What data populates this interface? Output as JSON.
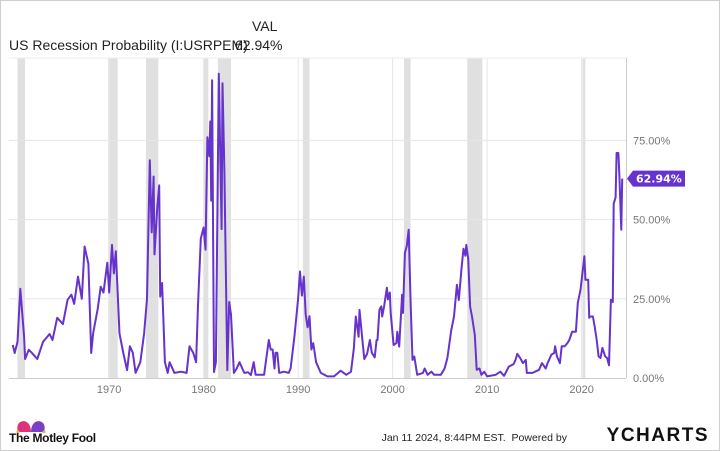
{
  "header": {
    "column_label": "VAL",
    "series_label": "US Recession Probability (I:USRPEM)",
    "series_value": "62.94%"
  },
  "footer": {
    "timestamp": "Jan 11 2024, 8:44PM EST.",
    "powered_by": "Powered by",
    "brand_logo": "The Motley Fool",
    "ycharts_logo": "YCHARTS"
  },
  "chart_data": {
    "type": "line",
    "title": "",
    "xlabel": "",
    "ylabel": "",
    "x_ticks": [
      1970,
      1980,
      1990,
      2000,
      2010,
      2020
    ],
    "x_tick_labels": [
      "1970",
      "1980",
      "1990",
      "2000",
      "2010",
      "2020"
    ],
    "y_ticks": [
      0,
      25,
      50,
      75
    ],
    "y_tick_labels": [
      "0.00%",
      "25.00%",
      "50.00%",
      "75.00%"
    ],
    "ylim": [
      0,
      101
    ],
    "xlim": [
      1959.4,
      2024.7
    ],
    "y_axis_side": "right",
    "grid": true,
    "line_color": "#6633cc",
    "recession_color": "#e0e0e0",
    "last_value_label": "62.94%",
    "last_value": 62.94,
    "recessions": [
      [
        1960.3,
        1961.1
      ],
      [
        1969.9,
        1970.9
      ],
      [
        1973.9,
        1975.2
      ],
      [
        1980.0,
        1980.5
      ],
      [
        1981.5,
        1982.9
      ],
      [
        1990.5,
        1991.2
      ],
      [
        2001.2,
        2001.9
      ],
      [
        2007.9,
        2009.5
      ],
      [
        2020.1,
        2020.4
      ]
    ],
    "series": [
      {
        "points": [
          [
            1959.8,
            10.4
          ],
          [
            1960.0,
            7.9
          ],
          [
            1960.3,
            11.4
          ],
          [
            1960.6,
            28.2
          ],
          [
            1961.0,
            13
          ],
          [
            1961.1,
            6
          ],
          [
            1961.5,
            8.9
          ],
          [
            1961.8,
            8
          ],
          [
            1962.4,
            6
          ],
          [
            1963.0,
            11.4
          ],
          [
            1963.7,
            13.9
          ],
          [
            1964.0,
            12
          ],
          [
            1964.5,
            19
          ],
          [
            1965.1,
            17
          ],
          [
            1965.6,
            24.7
          ],
          [
            1966.0,
            26.3
          ],
          [
            1966.3,
            23.4
          ],
          [
            1966.7,
            32
          ],
          [
            1967.1,
            25
          ],
          [
            1967.4,
            41.5
          ],
          [
            1967.8,
            36
          ],
          [
            1968.1,
            7.9
          ],
          [
            1968.3,
            14
          ],
          [
            1968.8,
            22
          ],
          [
            1969.1,
            28.8
          ],
          [
            1969.4,
            27
          ],
          [
            1969.8,
            36.4
          ],
          [
            1970.0,
            27
          ],
          [
            1970.3,
            42
          ],
          [
            1970.5,
            33
          ],
          [
            1970.7,
            40
          ],
          [
            1971.1,
            14
          ],
          [
            1971.5,
            7.9
          ],
          [
            1971.9,
            2.5
          ],
          [
            1972.2,
            10
          ],
          [
            1972.5,
            8
          ],
          [
            1972.8,
            1.6
          ],
          [
            1973.3,
            5
          ],
          [
            1973.7,
            14
          ],
          [
            1974.0,
            25
          ],
          [
            1974.3,
            68.7
          ],
          [
            1974.5,
            46
          ],
          [
            1974.7,
            63.6
          ],
          [
            1974.8,
            39
          ],
          [
            1975.1,
            54
          ],
          [
            1975.3,
            60.8
          ],
          [
            1975.4,
            25.7
          ],
          [
            1975.6,
            30
          ],
          [
            1975.9,
            5
          ],
          [
            1976.2,
            1.6
          ],
          [
            1976.4,
            5
          ],
          [
            1976.9,
            1.6
          ],
          [
            1977.6,
            2
          ],
          [
            1978.2,
            1.6
          ],
          [
            1978.5,
            10
          ],
          [
            1978.9,
            8
          ],
          [
            1979.2,
            5
          ],
          [
            1979.4,
            23
          ],
          [
            1979.7,
            44
          ],
          [
            1980.0,
            47.5
          ],
          [
            1980.2,
            40.5
          ],
          [
            1980.4,
            76
          ],
          [
            1980.6,
            70
          ],
          [
            1980.7,
            81
          ],
          [
            1980.8,
            56
          ],
          [
            1980.9,
            94
          ],
          [
            1981.1,
            1.9
          ],
          [
            1981.3,
            5
          ],
          [
            1981.6,
            96
          ],
          [
            1981.9,
            47
          ],
          [
            1982.0,
            93
          ],
          [
            1982.2,
            65
          ],
          [
            1982.5,
            2.5
          ],
          [
            1982.7,
            24
          ],
          [
            1982.9,
            20
          ],
          [
            1983.2,
            1.6
          ],
          [
            1983.5,
            3
          ],
          [
            1983.8,
            5
          ],
          [
            1984.3,
            1.6
          ],
          [
            1984.7,
            1.8
          ],
          [
            1985.0,
            0.9
          ],
          [
            1985.3,
            5
          ],
          [
            1985.5,
            1
          ],
          [
            1986.4,
            1
          ],
          [
            1986.9,
            12
          ],
          [
            1987.1,
            9
          ],
          [
            1987.3,
            9
          ],
          [
            1987.5,
            3
          ],
          [
            1987.6,
            8
          ],
          [
            1987.8,
            8
          ],
          [
            1988.0,
            1.6
          ],
          [
            1988.5,
            2
          ],
          [
            1989.0,
            1.6
          ],
          [
            1989.2,
            3
          ],
          [
            1989.6,
            13
          ],
          [
            1990.0,
            25
          ],
          [
            1990.2,
            33.6
          ],
          [
            1990.4,
            26
          ],
          [
            1990.6,
            32
          ],
          [
            1990.8,
            20
          ],
          [
            1991.0,
            16
          ],
          [
            1991.2,
            19.5
          ],
          [
            1991.4,
            9
          ],
          [
            1991.6,
            11
          ],
          [
            1991.9,
            5
          ],
          [
            1992.4,
            1.6
          ],
          [
            1993.1,
            0.5
          ],
          [
            1993.8,
            0.5
          ],
          [
            1994.5,
            2.3
          ],
          [
            1995.1,
            1
          ],
          [
            1995.6,
            2
          ],
          [
            1995.9,
            9.5
          ],
          [
            1996.1,
            19.4
          ],
          [
            1996.4,
            13
          ],
          [
            1996.5,
            21.5
          ],
          [
            1996.8,
            12
          ],
          [
            1997.0,
            6
          ],
          [
            1997.3,
            7.6
          ],
          [
            1997.6,
            12
          ],
          [
            1997.8,
            8
          ],
          [
            1998.1,
            6.5
          ],
          [
            1998.3,
            12
          ],
          [
            1998.4,
            12
          ],
          [
            1998.6,
            21.5
          ],
          [
            1998.8,
            22.6
          ],
          [
            1998.9,
            19.4
          ],
          [
            1999.1,
            22.6
          ],
          [
            1999.4,
            28.5
          ],
          [
            1999.5,
            24.8
          ],
          [
            1999.7,
            27
          ],
          [
            1999.8,
            20.5
          ],
          [
            2000.1,
            10.4
          ],
          [
            2000.4,
            11
          ],
          [
            2000.5,
            14.6
          ],
          [
            2000.7,
            9.9
          ],
          [
            2001.0,
            26.3
          ],
          [
            2001.1,
            20.5
          ],
          [
            2001.3,
            39.5
          ],
          [
            2001.5,
            41.7
          ],
          [
            2001.7,
            46.8
          ],
          [
            2001.9,
            24
          ],
          [
            2002.1,
            5.7
          ],
          [
            2002.3,
            6.8
          ],
          [
            2002.6,
            1
          ],
          [
            2003.2,
            1.6
          ],
          [
            2003.4,
            3
          ],
          [
            2003.7,
            1
          ],
          [
            2004.1,
            2
          ],
          [
            2004.4,
            1
          ],
          [
            2005.1,
            1
          ],
          [
            2005.5,
            3
          ],
          [
            2005.8,
            6.3
          ],
          [
            2006.2,
            15
          ],
          [
            2006.5,
            19.4
          ],
          [
            2006.8,
            29.4
          ],
          [
            2007.0,
            24.6
          ],
          [
            2007.3,
            34.8
          ],
          [
            2007.5,
            40.8
          ],
          [
            2007.7,
            38.6
          ],
          [
            2007.8,
            42
          ],
          [
            2008.0,
            37.7
          ],
          [
            2008.2,
            22.6
          ],
          [
            2008.4,
            19.4
          ],
          [
            2008.7,
            13.6
          ],
          [
            2008.9,
            2.6
          ],
          [
            2009.2,
            3
          ],
          [
            2009.4,
            1
          ],
          [
            2009.7,
            2
          ],
          [
            2010.0,
            0.5
          ],
          [
            2010.9,
            1
          ],
          [
            2011.4,
            2
          ],
          [
            2011.8,
            0.7
          ],
          [
            2012.3,
            3.6
          ],
          [
            2012.8,
            4.4
          ],
          [
            2013.0,
            5.7
          ],
          [
            2013.2,
            7.6
          ],
          [
            2013.5,
            6.3
          ],
          [
            2013.8,
            4.7
          ],
          [
            2014.1,
            5.7
          ],
          [
            2014.2,
            1.6
          ],
          [
            2014.8,
            1.6
          ],
          [
            2015.5,
            2.6
          ],
          [
            2015.8,
            4.7
          ],
          [
            2016.2,
            3
          ],
          [
            2016.4,
            4.7
          ],
          [
            2016.8,
            7.4
          ],
          [
            2017.1,
            7.9
          ],
          [
            2017.2,
            10
          ],
          [
            2017.4,
            6.8
          ],
          [
            2017.7,
            4.7
          ],
          [
            2017.9,
            10
          ],
          [
            2018.2,
            10
          ],
          [
            2018.5,
            11
          ],
          [
            2018.7,
            12
          ],
          [
            2019.0,
            14.6
          ],
          [
            2019.4,
            14.6
          ],
          [
            2019.6,
            23.7
          ],
          [
            2019.9,
            28
          ],
          [
            2020.1,
            33.3
          ],
          [
            2020.3,
            38.4
          ],
          [
            2020.4,
            31
          ],
          [
            2020.7,
            31
          ],
          [
            2020.8,
            19
          ],
          [
            2020.9,
            19.4
          ],
          [
            2021.2,
            19.4
          ],
          [
            2021.4,
            16
          ],
          [
            2021.6,
            12
          ],
          [
            2021.8,
            6.8
          ],
          [
            2022.0,
            6.3
          ],
          [
            2022.2,
            9.5
          ],
          [
            2022.5,
            6.8
          ],
          [
            2022.7,
            6.3
          ],
          [
            2022.9,
            4
          ],
          [
            2023.1,
            24.7
          ],
          [
            2023.3,
            24
          ],
          [
            2023.4,
            55
          ],
          [
            2023.6,
            57
          ],
          [
            2023.7,
            71
          ],
          [
            2023.9,
            71
          ],
          [
            2024.0,
            63.6
          ],
          [
            2024.2,
            46.8
          ],
          [
            2024.3,
            62.94
          ]
        ]
      }
    ]
  }
}
